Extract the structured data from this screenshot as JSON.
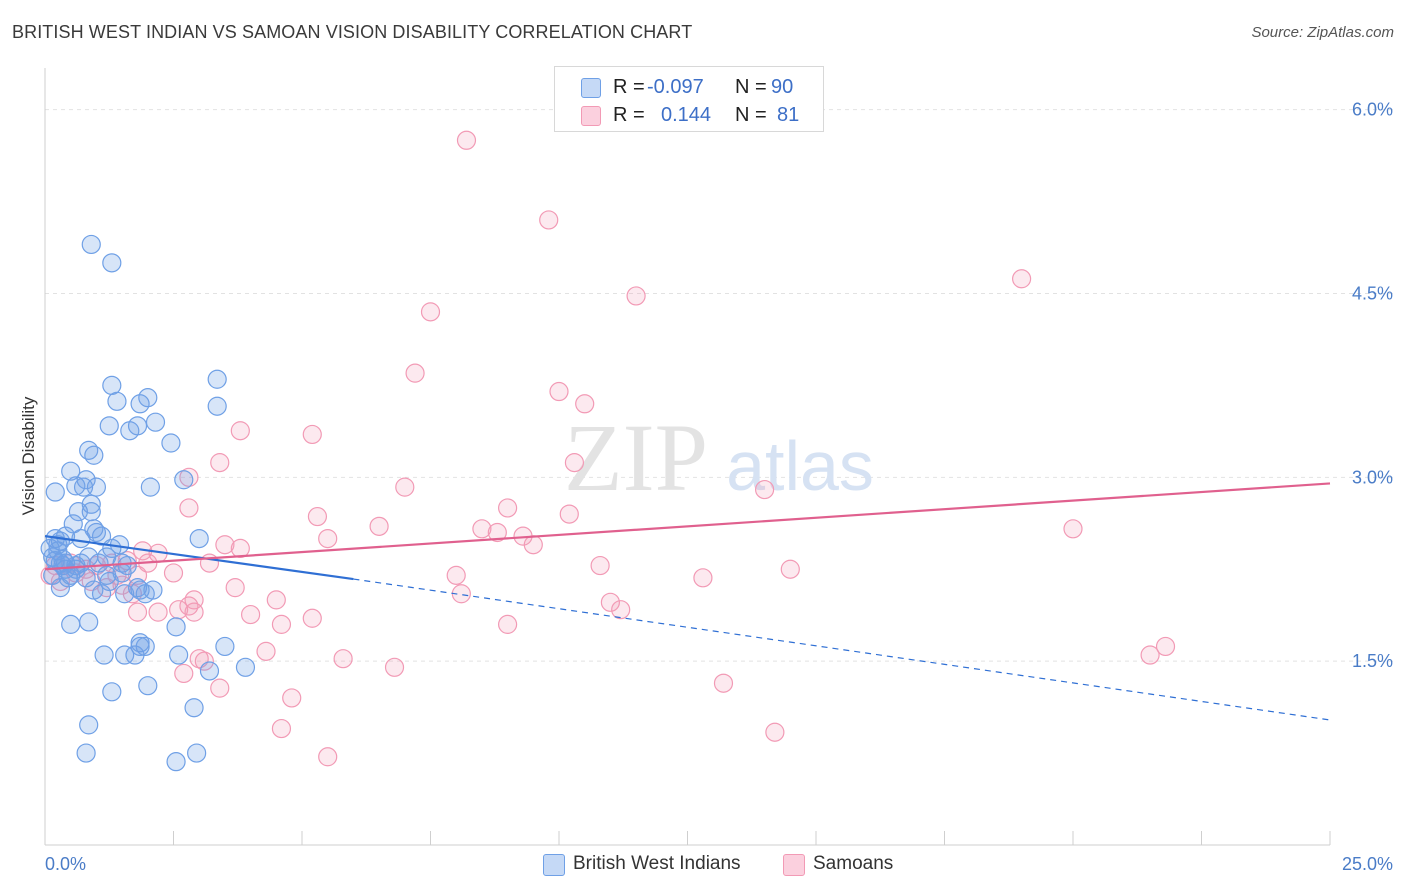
{
  "header": {
    "title": "BRITISH WEST INDIAN VS SAMOAN VISION DISABILITY CORRELATION CHART",
    "source": "Source: ZipAtlas.com"
  },
  "watermark": {
    "zip": "ZIP",
    "atlas": "atlas"
  },
  "legend": {
    "rows": [
      {
        "r_label": "R =",
        "r_value": "-0.097",
        "n_label": "N =",
        "n_value": "90",
        "color": "#6fa0e6"
      },
      {
        "r_label": "R =",
        "r_value": "0.144",
        "n_label": "N =",
        "n_value": "81",
        "color": "#f29ab5"
      }
    ]
  },
  "bottom_legend": [
    {
      "label": "British West Indians",
      "color": "#6fa0e6"
    },
    {
      "label": "Samoans",
      "color": "#f29ab5"
    }
  ],
  "chart_data": {
    "type": "scatter",
    "title": "BRITISH WEST INDIAN VS SAMOAN VISION DISABILITY CORRELATION CHART",
    "xlabel": "",
    "ylabel": "Vision Disability",
    "xlim": [
      0,
      25
    ],
    "ylim": [
      0,
      6.25
    ],
    "x_tick_labels": [
      "0.0%",
      "25.0%"
    ],
    "y_ticks": [
      1.5,
      3.0,
      4.5,
      6.0
    ],
    "y_tick_labels": [
      "1.5%",
      "3.0%",
      "4.5%",
      "6.0%"
    ],
    "grid": true,
    "legend_position": "top-center",
    "series": [
      {
        "name": "British West Indians",
        "color": "#6fa0e6",
        "line_color": "#2f6fd4",
        "trend": {
          "x_start": 0.0,
          "y_start": 2.52,
          "x_solid_end": 6.0,
          "y_solid_end": 2.17,
          "x_end": 25.0,
          "y_end": 1.02
        },
        "points": [
          [
            0.1,
            2.42
          ],
          [
            0.15,
            2.35
          ],
          [
            0.2,
            2.5
          ],
          [
            0.25,
            2.45
          ],
          [
            0.3,
            2.3
          ],
          [
            0.35,
            2.28
          ],
          [
            0.2,
            2.32
          ],
          [
            0.4,
            2.25
          ],
          [
            0.5,
            2.2
          ],
          [
            0.3,
            2.1
          ],
          [
            0.45,
            2.18
          ],
          [
            0.6,
            2.28
          ],
          [
            0.2,
            2.88
          ],
          [
            0.5,
            3.05
          ],
          [
            0.6,
            2.93
          ],
          [
            0.75,
            2.92
          ],
          [
            0.8,
            2.98
          ],
          [
            0.65,
            2.72
          ],
          [
            0.9,
            2.72
          ],
          [
            0.55,
            2.62
          ],
          [
            0.95,
            2.58
          ],
          [
            1.0,
            2.55
          ],
          [
            1.1,
            2.52
          ],
          [
            0.7,
            2.5
          ],
          [
            0.4,
            2.52
          ],
          [
            0.3,
            2.48
          ],
          [
            0.85,
            2.35
          ],
          [
            1.2,
            2.2
          ],
          [
            1.25,
            2.15
          ],
          [
            1.1,
            2.05
          ],
          [
            0.95,
            2.08
          ],
          [
            1.3,
            2.42
          ],
          [
            1.05,
            2.3
          ],
          [
            1.5,
            2.3
          ],
          [
            1.8,
            2.1
          ],
          [
            1.55,
            2.05
          ],
          [
            1.85,
            2.08
          ],
          [
            0.5,
            1.8
          ],
          [
            0.85,
            1.82
          ],
          [
            0.9,
            2.78
          ],
          [
            1.0,
            2.92
          ],
          [
            0.95,
            3.18
          ],
          [
            0.85,
            3.22
          ],
          [
            1.4,
            3.62
          ],
          [
            1.25,
            3.42
          ],
          [
            1.3,
            3.75
          ],
          [
            1.65,
            3.38
          ],
          [
            1.8,
            3.42
          ],
          [
            1.85,
            3.6
          ],
          [
            2.0,
            3.65
          ],
          [
            2.15,
            3.45
          ],
          [
            2.05,
            2.92
          ],
          [
            2.45,
            3.28
          ],
          [
            2.7,
            2.98
          ],
          [
            3.0,
            2.5
          ],
          [
            3.5,
            1.62
          ],
          [
            3.35,
            3.58
          ],
          [
            3.35,
            3.8
          ],
          [
            1.3,
            4.75
          ],
          [
            3.9,
            1.45
          ],
          [
            1.15,
            1.55
          ],
          [
            1.85,
            1.62
          ],
          [
            1.95,
            1.62
          ],
          [
            1.55,
            1.55
          ],
          [
            1.3,
            1.25
          ],
          [
            0.85,
            0.98
          ],
          [
            0.8,
            0.75
          ],
          [
            2.0,
            1.3
          ],
          [
            2.95,
            0.75
          ],
          [
            2.55,
            0.68
          ],
          [
            2.9,
            1.12
          ],
          [
            0.9,
            4.9
          ],
          [
            2.6,
            1.55
          ],
          [
            1.85,
            1.65
          ],
          [
            1.75,
            1.55
          ],
          [
            3.2,
            1.42
          ],
          [
            2.55,
            1.78
          ],
          [
            0.8,
            2.18
          ],
          [
            1.5,
            2.22
          ],
          [
            0.6,
            2.25
          ],
          [
            0.7,
            2.3
          ],
          [
            1.2,
            2.35
          ],
          [
            0.15,
            2.2
          ],
          [
            0.25,
            2.4
          ],
          [
            0.35,
            2.33
          ],
          [
            1.45,
            2.45
          ],
          [
            1.6,
            2.28
          ],
          [
            0.4,
            2.3
          ],
          [
            1.95,
            2.05
          ],
          [
            2.1,
            2.08
          ]
        ]
      },
      {
        "name": "Samoans",
        "color": "#f29ab5",
        "line_color": "#e0608e",
        "trend": {
          "x_start": 0.0,
          "y_start": 2.25,
          "x_end": 25.0,
          "y_end": 2.95
        },
        "points": [
          [
            0.1,
            2.2
          ],
          [
            0.2,
            2.28
          ],
          [
            0.3,
            2.15
          ],
          [
            0.5,
            2.3
          ],
          [
            0.6,
            2.22
          ],
          [
            0.8,
            2.25
          ],
          [
            0.9,
            2.15
          ],
          [
            1.0,
            2.28
          ],
          [
            1.2,
            2.1
          ],
          [
            1.3,
            2.3
          ],
          [
            1.5,
            2.12
          ],
          [
            1.7,
            2.05
          ],
          [
            1.8,
            1.9
          ],
          [
            2.0,
            2.3
          ],
          [
            2.2,
            2.38
          ],
          [
            2.5,
            2.22
          ],
          [
            2.8,
            1.95
          ],
          [
            3.2,
            2.3
          ],
          [
            3.5,
            2.45
          ],
          [
            3.7,
            2.1
          ],
          [
            1.6,
            2.32
          ],
          [
            1.4,
            2.2
          ],
          [
            1.9,
            2.4
          ],
          [
            2.6,
            1.92
          ],
          [
            3.0,
            1.52
          ],
          [
            3.1,
            1.5
          ],
          [
            2.9,
            1.9
          ],
          [
            1.8,
            2.2
          ],
          [
            2.2,
            1.9
          ],
          [
            2.7,
            1.4
          ],
          [
            2.9,
            2.0
          ],
          [
            3.4,
            1.28
          ],
          [
            3.8,
            2.42
          ],
          [
            4.0,
            1.88
          ],
          [
            4.5,
            2.0
          ],
          [
            4.6,
            1.8
          ],
          [
            4.8,
            1.2
          ],
          [
            5.2,
            3.35
          ],
          [
            5.2,
            1.85
          ],
          [
            5.5,
            2.5
          ],
          [
            5.3,
            2.68
          ],
          [
            2.8,
            2.75
          ],
          [
            3.4,
            3.12
          ],
          [
            2.8,
            3.0
          ],
          [
            3.8,
            3.38
          ],
          [
            5.8,
            1.52
          ],
          [
            4.3,
            1.58
          ],
          [
            4.6,
            0.95
          ],
          [
            5.5,
            0.72
          ],
          [
            6.5,
            2.6
          ],
          [
            6.8,
            1.45
          ],
          [
            7.0,
            2.92
          ],
          [
            7.2,
            3.85
          ],
          [
            7.5,
            4.35
          ],
          [
            8.8,
            2.55
          ],
          [
            9.0,
            2.75
          ],
          [
            9.3,
            2.52
          ],
          [
            9.5,
            2.45
          ],
          [
            8.5,
            2.58
          ],
          [
            10.2,
            2.7
          ],
          [
            11.0,
            1.98
          ],
          [
            10.8,
            2.28
          ],
          [
            10.5,
            3.6
          ],
          [
            10.0,
            3.7
          ],
          [
            10.3,
            3.12
          ],
          [
            11.2,
            1.92
          ],
          [
            11.5,
            4.48
          ],
          [
            12.8,
            2.18
          ],
          [
            13.2,
            1.32
          ],
          [
            14.0,
            2.9
          ],
          [
            14.5,
            2.25
          ],
          [
            14.2,
            0.92
          ],
          [
            19.0,
            4.62
          ],
          [
            20.0,
            2.58
          ],
          [
            21.5,
            1.55
          ],
          [
            21.8,
            1.62
          ],
          [
            8.2,
            5.75
          ],
          [
            9.8,
            5.1
          ],
          [
            8.0,
            2.2
          ],
          [
            9.0,
            1.8
          ],
          [
            8.1,
            2.05
          ]
        ]
      }
    ]
  }
}
